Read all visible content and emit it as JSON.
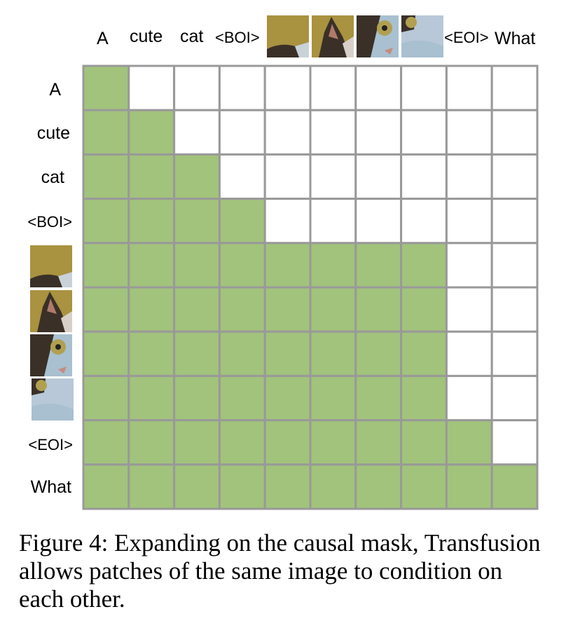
{
  "tokens": [
    "A",
    "cute",
    "cat",
    "<BOI>",
    "image patch 1",
    "image patch 2",
    "image patch 3",
    "image patch 4",
    "<EOI>",
    "What"
  ],
  "text_token_labels": {
    "A": "A",
    "cute": "cute",
    "cat": "cat",
    "boi": "<BOI>",
    "eoi": "<EOI>",
    "what": "What"
  },
  "mask": [
    [
      1,
      0,
      0,
      0,
      0,
      0,
      0,
      0,
      0,
      0
    ],
    [
      1,
      1,
      0,
      0,
      0,
      0,
      0,
      0,
      0,
      0
    ],
    [
      1,
      1,
      1,
      0,
      0,
      0,
      0,
      0,
      0,
      0
    ],
    [
      1,
      1,
      1,
      1,
      0,
      0,
      0,
      0,
      0,
      0
    ],
    [
      1,
      1,
      1,
      1,
      1,
      1,
      1,
      1,
      0,
      0
    ],
    [
      1,
      1,
      1,
      1,
      1,
      1,
      1,
      1,
      0,
      0
    ],
    [
      1,
      1,
      1,
      1,
      1,
      1,
      1,
      1,
      0,
      0
    ],
    [
      1,
      1,
      1,
      1,
      1,
      1,
      1,
      1,
      0,
      0
    ],
    [
      1,
      1,
      1,
      1,
      1,
      1,
      1,
      1,
      1,
      0
    ],
    [
      1,
      1,
      1,
      1,
      1,
      1,
      1,
      1,
      1,
      1
    ]
  ],
  "colors": {
    "attend": "#a2c37b",
    "masked": "#ffffff",
    "grid_line": "#999999",
    "patch_bg": "#a99240",
    "cat_light": "#a8c0d0",
    "cat_dark": "#3a3028"
  },
  "caption": "Figure 4: Expanding on the causal mask, Transfusion allows patches of the same image to condition on each other."
}
